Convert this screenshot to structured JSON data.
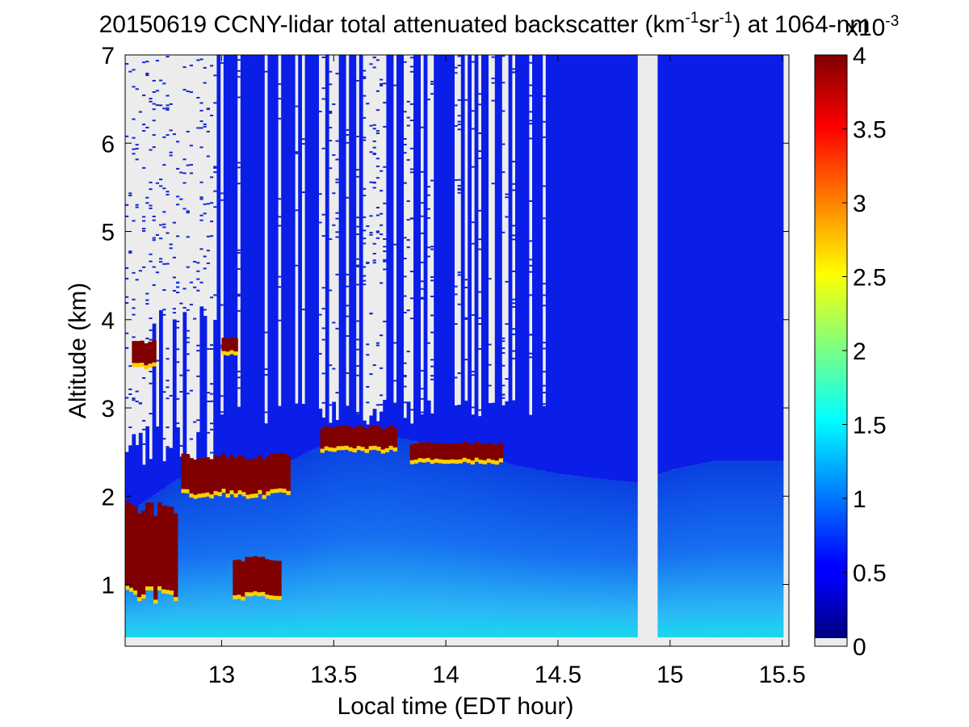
{
  "chart_data": {
    "type": "heatmap",
    "title": {
      "lead": "20150619 CCNY-lidar total attenuated backscatter (km",
      "sup1": "-1",
      "mid": "sr",
      "sup2": "-1",
      "tail": ") at 1064-nm"
    },
    "xlabel": "Local time (EDT hour)",
    "ylabel": "Altitude (km)",
    "xlim": [
      12.57,
      15.53
    ],
    "ylim": [
      0.3,
      7.0
    ],
    "x_ticks": [
      13,
      13.5,
      14,
      14.5,
      15,
      15.5
    ],
    "x_tick_labels": [
      "13",
      "13.5",
      "14",
      "14.5",
      "15",
      "15.5"
    ],
    "y_ticks": [
      1,
      2,
      3,
      4,
      5,
      6,
      7
    ],
    "y_tick_labels": [
      "1",
      "2",
      "3",
      "4",
      "5",
      "6",
      "7"
    ],
    "colorbar": {
      "min": 0,
      "max": 4,
      "ticks": [
        0,
        0.5,
        1,
        1.5,
        2,
        2.5,
        3,
        3.5,
        4
      ],
      "tick_labels": [
        "0",
        "0.5",
        "1",
        "1.5",
        "2",
        "2.5",
        "3",
        "3.5",
        "4"
      ],
      "multiplier_base": "x10",
      "multiplier_exp": "-3",
      "colormap": "jet",
      "nodata_color": "#ececec"
    },
    "data_gap_hours": [
      14.84,
      14.94
    ],
    "data_end_hour": 15.49,
    "lowest_valid_altitude_km": 0.4,
    "features": {
      "boundary_layer_top_km": [
        {
          "t": 12.57,
          "h": 1.8
        },
        {
          "t": 12.8,
          "h": 2.2
        },
        {
          "t": 13.0,
          "h": 2.3
        },
        {
          "t": 13.3,
          "h": 2.4
        },
        {
          "t": 13.5,
          "h": 2.65
        },
        {
          "t": 13.7,
          "h": 2.7
        },
        {
          "t": 14.0,
          "h": 2.55
        },
        {
          "t": 14.3,
          "h": 2.35
        },
        {
          "t": 14.5,
          "h": 2.25
        },
        {
          "t": 14.84,
          "h": 2.15
        },
        {
          "t": 15.0,
          "h": 2.3
        },
        {
          "t": 15.2,
          "h": 2.4
        },
        {
          "t": 15.49,
          "h": 2.4
        }
      ],
      "cloud_layers": [
        {
          "t0": 12.6,
          "t1": 12.7,
          "h0": 3.5,
          "h1": 3.75
        },
        {
          "t0": 13.0,
          "t1": 13.06,
          "h0": 3.65,
          "h1": 3.8
        },
        {
          "t0": 12.82,
          "t1": 13.3,
          "h0": 2.05,
          "h1": 2.45
        },
        {
          "t0": 13.44,
          "t1": 13.78,
          "h0": 2.55,
          "h1": 2.78
        },
        {
          "t0": 13.84,
          "t1": 14.25,
          "h0": 2.42,
          "h1": 2.6
        },
        {
          "t0": 12.57,
          "t1": 12.8,
          "h0": 0.9,
          "h1": 1.85
        },
        {
          "t0": 13.05,
          "t1": 13.25,
          "h0": 0.9,
          "h1": 1.3
        }
      ]
    }
  }
}
